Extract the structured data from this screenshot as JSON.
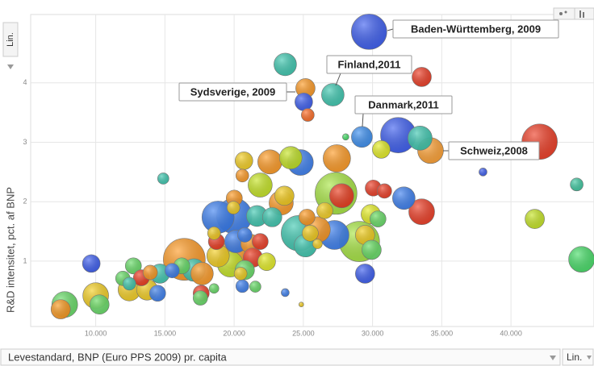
{
  "chart_data": {
    "type": "bubble",
    "y_label": "R&D intensitet, pct. af BNP",
    "x_label": "Levestandard, BNP (Euro PPS 2009) pr. capita",
    "y_scale_button": "Lin.",
    "x_scale_button": "Lin.",
    "xlim": [
      5300,
      46000
    ],
    "ylim": [
      -0.1,
      5.15
    ],
    "xticks": [
      {
        "value": 10000,
        "label": "10.000"
      },
      {
        "value": 15000,
        "label": "15.000"
      },
      {
        "value": 20000,
        "label": "20.000"
      },
      {
        "value": 25000,
        "label": "25.000"
      },
      {
        "value": 30000,
        "label": "30.000"
      },
      {
        "value": 35000,
        "label": "35.000"
      },
      {
        "value": 40000,
        "label": "40.000"
      }
    ],
    "yticks": [
      1,
      2,
      3,
      4
    ],
    "grid": true,
    "annotations": [
      {
        "text": "Baden-Württemberg, 2009"
      },
      {
        "text": "Finland,2011"
      },
      {
        "text": "Sydsverige, 2009"
      },
      {
        "text": "Danmark,2011"
      },
      {
        "text": "Schweiz,2008"
      }
    ],
    "x": [
      29750,
      23690,
      33550,
      25150,
      25030,
      27130,
      25320,
      29230,
      31860,
      33430,
      34190,
      42070,
      28060,
      30630,
      37980,
      44750,
      41720,
      45100,
      14880,
      20710,
      22580,
      24090,
      24790,
      27420,
      20590,
      21880,
      23630,
      27360,
      27770,
      30050,
      30860,
      32260,
      33550,
      20010,
      18840,
      21650,
      22750,
      23400,
      20010,
      19950,
      25260,
      26550,
      29870,
      30390,
      26020,
      25500,
      27250,
      29050,
      29460,
      29930,
      24680,
      25150,
      18550,
      18720,
      20130,
      20010,
      20770,
      21180,
      21350,
      21880,
      22350,
      16400,
      17100,
      16220,
      17680,
      17620,
      17560,
      18550,
      18840,
      19720,
      20770,
      20590,
      21530,
      23690,
      24850,
      26020,
      9680,
      12720,
      12430,
      11960,
      13300,
      13940,
      14640,
      15520,
      12430,
      13710,
      14470,
      10000,
      10270,
      7760,
      7470,
      29460,
      20470
    ],
    "y": [
      4.86,
      4.31,
      4.1,
      3.91,
      3.68,
      3.8,
      3.46,
      3.09,
      3.12,
      3.07,
      2.86,
      3.01,
      3.09,
      2.88,
      2.5,
      2.29,
      1.71,
      1.03,
      2.39,
      2.69,
      2.67,
      2.74,
      2.66,
      2.73,
      2.44,
      2.28,
      2.1,
      2.14,
      2.1,
      2.23,
      2.18,
      2.06,
      1.83,
      1.76,
      1.74,
      1.76,
      1.74,
      1.98,
      2.06,
      1.9,
      1.74,
      1.85,
      1.79,
      1.71,
      1.53,
      1.47,
      1.44,
      1.33,
      1.44,
      1.19,
      1.47,
      1.26,
      1.47,
      1.33,
      1.33,
      1.11,
      1.44,
      1.29,
      1.06,
      1.33,
      0.99,
      1.03,
      0.85,
      0.92,
      0.79,
      0.46,
      0.38,
      0.54,
      1.09,
      0.95,
      0.85,
      0.58,
      0.57,
      0.47,
      0.27,
      1.29,
      0.96,
      0.92,
      0.62,
      0.71,
      0.72,
      0.81,
      0.79,
      0.84,
      0.52,
      0.52,
      0.46,
      0.42,
      0.27,
      0.27,
      0.19,
      0.79,
      0.79
    ],
    "sizes": [
      22,
      14,
      12,
      12,
      11,
      14,
      8,
      13,
      22,
      15,
      16,
      22,
      4,
      11,
      5,
      8,
      12,
      16,
      7,
      11,
      15,
      14,
      16,
      17,
      8,
      15,
      12,
      26,
      15,
      10,
      9,
      14,
      16,
      22,
      20,
      13,
      12,
      15,
      10,
      8,
      10,
      10,
      12,
      10,
      16,
      10,
      18,
      25,
      12,
      12,
      22,
      14,
      8,
      10,
      14,
      18,
      9,
      12,
      12,
      10,
      11,
      26,
      14,
      10,
      14,
      10,
      9,
      6,
      14,
      16,
      12,
      8,
      7,
      5,
      3,
      6,
      11,
      10,
      8,
      9,
      10,
      9,
      12,
      9,
      14,
      13,
      10,
      16,
      12,
      16,
      12,
      12,
      8
    ],
    "colors": [
      "#3a5cf0",
      "#3cc8b0",
      "#ee3a22",
      "#ff9a22",
      "#3a5cf0",
      "#3cc8b0",
      "#ff6a22",
      "#3a8ef0",
      "#3a5cf0",
      "#3cc8b0",
      "#ffa030",
      "#ee3a22",
      "#44dd66",
      "#e6ee22",
      "#3a5cf0",
      "#3cc8a0",
      "#c6e622",
      "#44dd66",
      "#3cc8b0",
      "#f6d020",
      "#ff9a22",
      "#c6e622",
      "#3a7ef0",
      "#ff9a22",
      "#ff9a22",
      "#c6e622",
      "#f6d020",
      "#a6e640",
      "#ee3a22",
      "#ee3a22",
      "#ee3a22",
      "#3a7ef0",
      "#ee3a22",
      "#3a7ef0",
      "#3a7ef0",
      "#3cc8b0",
      "#3cc8b0",
      "#ff9a22",
      "#ff9a22",
      "#f6d020",
      "#ff9a22",
      "#f6d020",
      "#e6ee22",
      "#66dd66",
      "#ff9a22",
      "#f6d020",
      "#3a7ef0",
      "#a6e640",
      "#f6d020",
      "#66dd66",
      "#3cc8b0",
      "#3cc8b0",
      "#f6d020",
      "#ee3a22",
      "#3a7ef0",
      "#ff9a22",
      "#3a7ef0",
      "#ff9a22",
      "#ee3a22",
      "#ee3a22",
      "#e6ee22",
      "#ff9a22",
      "#3cc8b0",
      "#66dd66",
      "#ff9a22",
      "#ee3a22",
      "#66dd66",
      "#66dd66",
      "#f6d020",
      "#c6e622",
      "#66dd66",
      "#3a7ef0",
      "#66dd66",
      "#3a7ef0",
      "#f6d020",
      "#f6d020",
      "#3a5cf0",
      "#66dd66",
      "#3cc8b0",
      "#66dd66",
      "#ee3a22",
      "#ff9a22",
      "#3cc8b0",
      "#3a7ef0",
      "#f6d020",
      "#f6d020",
      "#3a7ef0",
      "#f6d020",
      "#66dd66",
      "#66dd66",
      "#ff9a22",
      "#3a5cf0",
      "#f6d020"
    ]
  }
}
